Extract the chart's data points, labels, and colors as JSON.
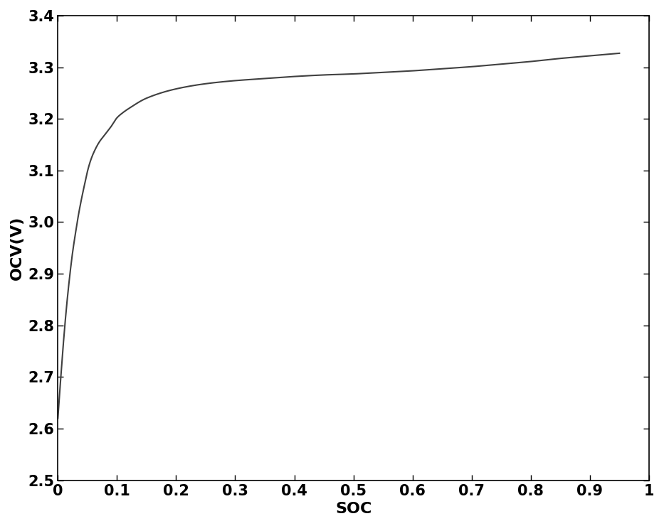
{
  "title": "",
  "xlabel": "SOC",
  "ylabel": "OCV(V)",
  "xlim": [
    0,
    1
  ],
  "ylim": [
    2.5,
    3.4
  ],
  "xticks": [
    0,
    0.1,
    0.2,
    0.3,
    0.4,
    0.5,
    0.6,
    0.7,
    0.8,
    0.9,
    1.0
  ],
  "xticklabels": [
    "0",
    "0.1",
    "0.2",
    "0.3",
    "0.4",
    "0.5",
    "0.6",
    "0.7",
    "0.8",
    "0.9",
    "1"
  ],
  "yticks": [
    2.5,
    2.6,
    2.7,
    2.8,
    2.9,
    3.0,
    3.1,
    3.2,
    3.3,
    3.4
  ],
  "yticklabels": [
    "2.5",
    "2.6",
    "2.7",
    "2.8",
    "2.9",
    "3.0",
    "3.1",
    "3.2",
    "3.3",
    "3.4"
  ],
  "line_color": "#404040",
  "background_color": "#ffffff",
  "xlabel_fontsize": 16,
  "ylabel_fontsize": 16,
  "tick_fontsize": 15,
  "line_width": 1.5,
  "ocv_keypoints_soc": [
    0.0,
    0.005,
    0.01,
    0.015,
    0.02,
    0.025,
    0.03,
    0.035,
    0.04,
    0.045,
    0.05,
    0.055,
    0.06,
    0.07,
    0.08,
    0.09,
    0.1,
    0.11,
    0.12,
    0.15,
    0.2,
    0.25,
    0.3,
    0.35,
    0.4,
    0.45,
    0.5,
    0.55,
    0.6,
    0.65,
    0.7,
    0.75,
    0.8,
    0.85,
    0.9,
    0.95
  ],
  "ocv_keypoints_ocv": [
    2.62,
    2.7,
    2.775,
    2.84,
    2.895,
    2.942,
    2.98,
    3.015,
    3.045,
    3.072,
    3.098,
    3.118,
    3.133,
    3.155,
    3.17,
    3.185,
    3.202,
    3.212,
    3.22,
    3.24,
    3.258,
    3.268,
    3.274,
    3.278,
    3.282,
    3.285,
    3.287,
    3.29,
    3.293,
    3.297,
    3.301,
    3.306,
    3.311,
    3.317,
    3.322,
    3.327
  ]
}
